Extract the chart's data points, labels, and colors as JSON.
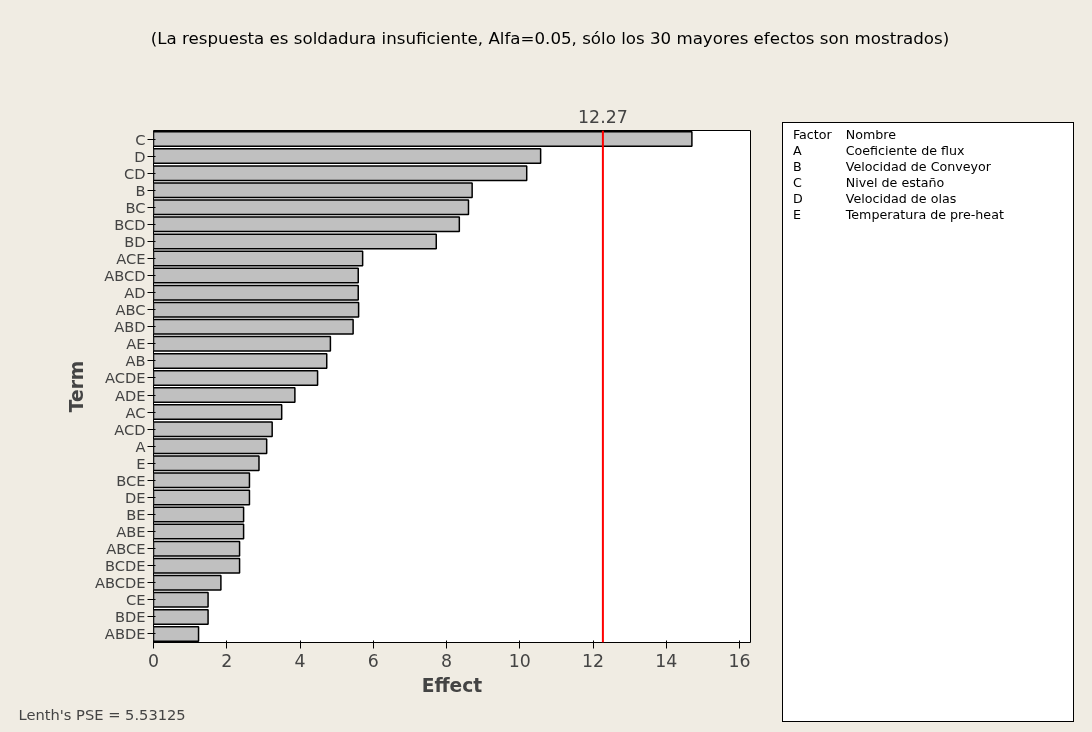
{
  "chart_data": {
    "type": "bar",
    "orientation": "horizontal",
    "title": "(La respuesta es soldadura insuficiente, Alfa=0.05, sólo los 30 mayores efectos son mostrados)",
    "xlabel": "Effect",
    "ylabel": "Term",
    "categories": [
      "C",
      "D",
      "CD",
      "B",
      "BC",
      "BCD",
      "BD",
      "ACE",
      "ABCD",
      "AD",
      "ABC",
      "ABD",
      "AE",
      "AB",
      "ACDE",
      "ADE",
      "AC",
      "ACD",
      "A",
      "E",
      "BCE",
      "DE",
      "BE",
      "ABE",
      "ABCE",
      "BCDE",
      "ABCDE",
      "CE",
      "BDE",
      "ABDE"
    ],
    "values": [
      14.7,
      10.57,
      10.19,
      8.7,
      8.6,
      8.35,
      7.72,
      5.71,
      5.59,
      5.59,
      5.6,
      5.45,
      4.83,
      4.73,
      4.48,
      3.86,
      3.5,
      3.24,
      3.09,
      2.88,
      2.62,
      2.62,
      2.46,
      2.46,
      2.35,
      2.35,
      1.84,
      1.49,
      1.49,
      1.23
    ],
    "color": "#c0c0c0",
    "xlim": [
      0,
      16.3
    ],
    "xticks": [
      0,
      2,
      4,
      6,
      8,
      10,
      12,
      14,
      16
    ],
    "ref_lines": [
      {
        "axis": "x",
        "value": 12.27,
        "label": "12.27",
        "color": "#ff0000"
      }
    ],
    "annotations": [
      "Lenth's PSE = 5.53125",
      "Factor",
      "Nombre",
      "A",
      "Coeficiente de flux",
      "B",
      "Velocidad de Conveyor",
      "C",
      "Nivel de estaño",
      "D",
      "Velocidad de olas",
      "E",
      "Temperatura de pre-heat"
    ],
    "grid": false
  }
}
